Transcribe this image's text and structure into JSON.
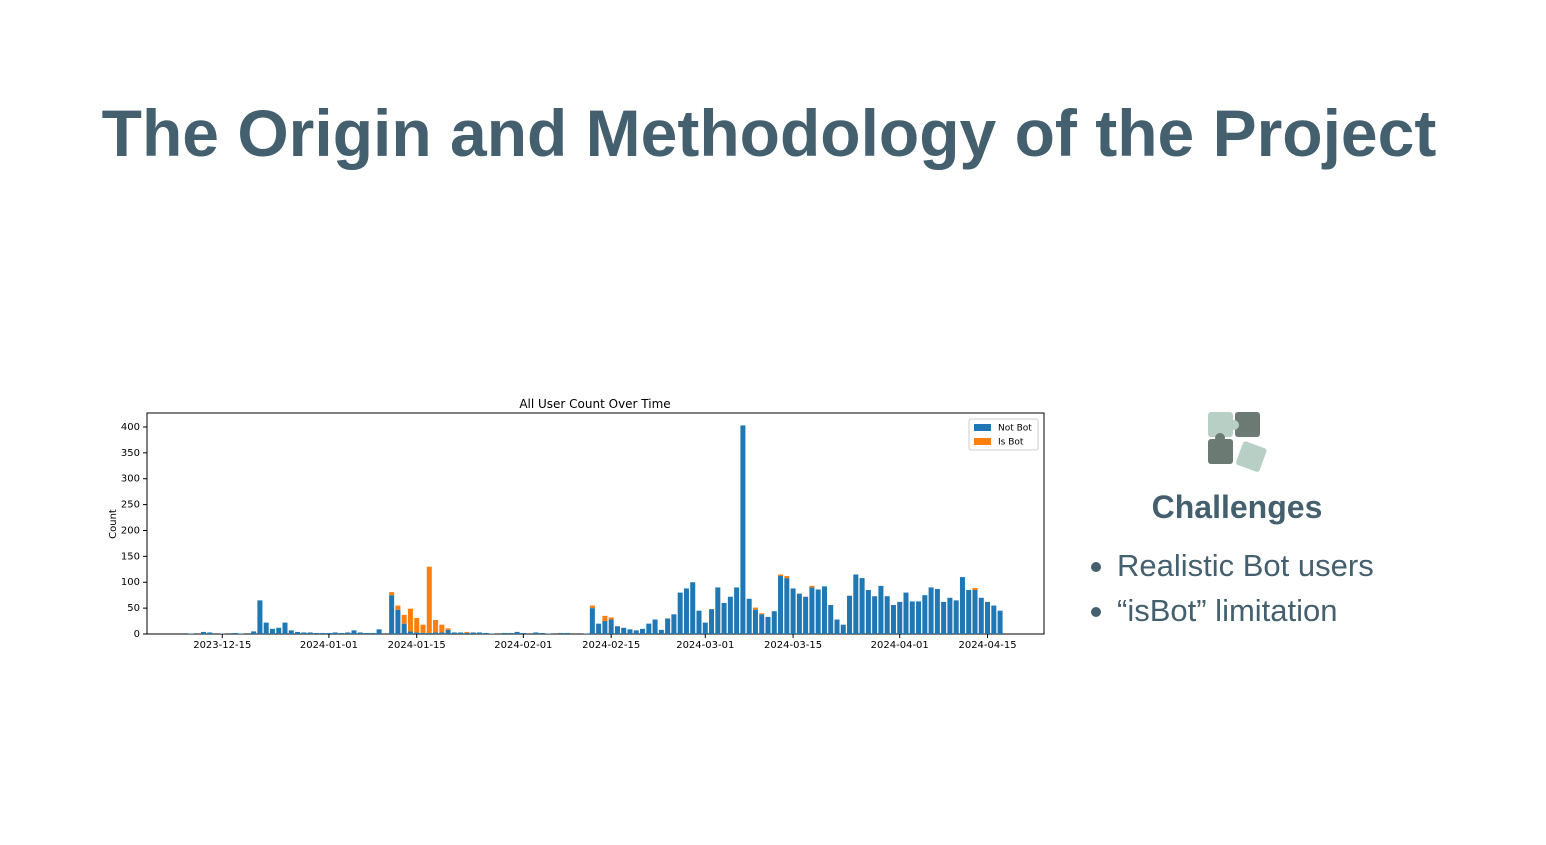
{
  "title": "The Origin and Methodology of the Project",
  "chart_data": {
    "type": "bar",
    "stacked": true,
    "title": "All User Count Over Time",
    "y_label": "Count",
    "x": [
      "2023-12-10",
      "2023-12-12",
      "2023-12-13",
      "2023-12-15",
      "2023-12-17",
      "2023-12-18",
      "2023-12-20",
      "2023-12-21",
      "2023-12-22",
      "2023-12-23",
      "2023-12-24",
      "2023-12-25",
      "2023-12-26",
      "2023-12-27",
      "2023-12-28",
      "2023-12-29",
      "2023-12-30",
      "2023-12-31",
      "2024-01-01",
      "2024-01-02",
      "2024-01-03",
      "2024-01-04",
      "2024-01-05",
      "2024-01-06",
      "2024-01-07",
      "2024-01-08",
      "2024-01-09",
      "2024-01-11",
      "2024-01-12",
      "2024-01-13",
      "2024-01-14",
      "2024-01-15",
      "2024-01-16",
      "2024-01-17",
      "2024-01-18",
      "2024-01-19",
      "2024-01-20",
      "2024-01-21",
      "2024-01-22",
      "2024-01-23",
      "2024-01-24",
      "2024-01-25",
      "2024-01-26",
      "2024-01-27",
      "2024-01-29",
      "2024-01-30",
      "2024-01-31",
      "2024-02-01",
      "2024-02-03",
      "2024-02-04",
      "2024-02-05",
      "2024-02-07",
      "2024-02-08",
      "2024-02-11",
      "2024-02-12",
      "2024-02-13",
      "2024-02-14",
      "2024-02-15",
      "2024-02-16",
      "2024-02-17",
      "2024-02-18",
      "2024-02-19",
      "2024-02-20",
      "2024-02-21",
      "2024-02-22",
      "2024-02-23",
      "2024-02-24",
      "2024-02-25",
      "2024-02-26",
      "2024-02-27",
      "2024-02-28",
      "2024-02-29",
      "2024-03-01",
      "2024-03-02",
      "2024-03-03",
      "2024-03-04",
      "2024-03-05",
      "2024-03-06",
      "2024-03-07",
      "2024-03-08",
      "2024-03-09",
      "2024-03-10",
      "2024-03-11",
      "2024-03-12",
      "2024-03-13",
      "2024-03-14",
      "2024-03-15",
      "2024-03-16",
      "2024-03-17",
      "2024-03-18",
      "2024-03-19",
      "2024-03-20",
      "2024-03-21",
      "2024-03-22",
      "2024-03-23",
      "2024-03-24",
      "2024-03-25",
      "2024-03-26",
      "2024-03-27",
      "2024-03-28",
      "2024-03-29",
      "2024-03-30",
      "2024-03-31",
      "2024-04-01",
      "2024-04-02",
      "2024-04-03",
      "2024-04-04",
      "2024-04-05",
      "2024-04-06",
      "2024-04-07",
      "2024-04-08",
      "2024-04-09",
      "2024-04-10",
      "2024-04-11",
      "2024-04-12",
      "2024-04-13",
      "2024-04-14",
      "2024-04-15",
      "2024-04-16",
      "2024-04-17"
    ],
    "series": [
      {
        "name": "Not Bot",
        "color": "#1f77b4",
        "values": [
          1,
          4,
          3,
          1,
          2,
          1,
          5,
          65,
          22,
          10,
          12,
          22,
          7,
          4,
          3,
          3,
          2,
          2,
          2,
          3,
          2,
          3,
          7,
          3,
          2,
          2,
          9,
          75,
          47,
          20,
          5,
          3,
          2,
          2,
          3,
          3,
          8,
          3,
          3,
          2,
          3,
          3,
          2,
          1,
          2,
          2,
          4,
          2,
          3,
          2,
          1,
          2,
          2,
          1,
          50,
          20,
          25,
          28,
          15,
          12,
          9,
          7,
          10,
          20,
          28,
          8,
          30,
          38,
          80,
          88,
          100,
          45,
          22,
          48,
          90,
          60,
          72,
          90,
          403,
          68,
          47,
          38,
          33,
          44,
          112,
          108,
          88,
          78,
          72,
          90,
          86,
          92,
          56,
          28,
          18,
          74,
          115,
          108,
          85,
          73,
          93,
          73,
          56,
          62,
          80,
          63,
          63,
          75,
          90,
          87,
          62,
          70,
          65,
          110,
          85,
          85,
          70,
          62,
          55,
          45
        ]
      },
      {
        "name": "Is Bot",
        "color": "#ff7f0e",
        "values": [
          0,
          0,
          0,
          0,
          0,
          0,
          0,
          0,
          0,
          0,
          0,
          0,
          0,
          0,
          0,
          0,
          0,
          0,
          0,
          0,
          0,
          0,
          0,
          0,
          0,
          0,
          0,
          6,
          8,
          17,
          44,
          28,
          16,
          128,
          24,
          15,
          3,
          0,
          0,
          2,
          0,
          0,
          0,
          0,
          0,
          0,
          0,
          0,
          0,
          0,
          0,
          0,
          0,
          0,
          5,
          0,
          10,
          4,
          0,
          0,
          0,
          0,
          0,
          0,
          0,
          0,
          0,
          0,
          0,
          0,
          0,
          0,
          0,
          0,
          0,
          0,
          0,
          0,
          0,
          0,
          4,
          2,
          0,
          0,
          3,
          4,
          0,
          0,
          0,
          3,
          0,
          0,
          0,
          0,
          0,
          0,
          0,
          0,
          0,
          0,
          0,
          0,
          0,
          0,
          0,
          0,
          0,
          0,
          0,
          0,
          0,
          0,
          0,
          0,
          0,
          4,
          0,
          0,
          0,
          0
        ]
      }
    ],
    "xlim": [
      "2023-12-03",
      "2024-04-24"
    ],
    "xticks": [
      "2023-12-15",
      "2024-01-01",
      "2024-01-15",
      "2024-02-01",
      "2024-02-15",
      "2024-03-01",
      "2024-03-15",
      "2024-04-01",
      "2024-04-15"
    ],
    "ylim": [
      0,
      427
    ],
    "yticks": [
      0,
      50,
      100,
      150,
      200,
      250,
      300,
      350,
      400
    ],
    "legend": "upper right"
  },
  "challenges": {
    "heading": "Challenges",
    "items": [
      "Realistic Bot users",
      "“isBot” limitation"
    ]
  }
}
